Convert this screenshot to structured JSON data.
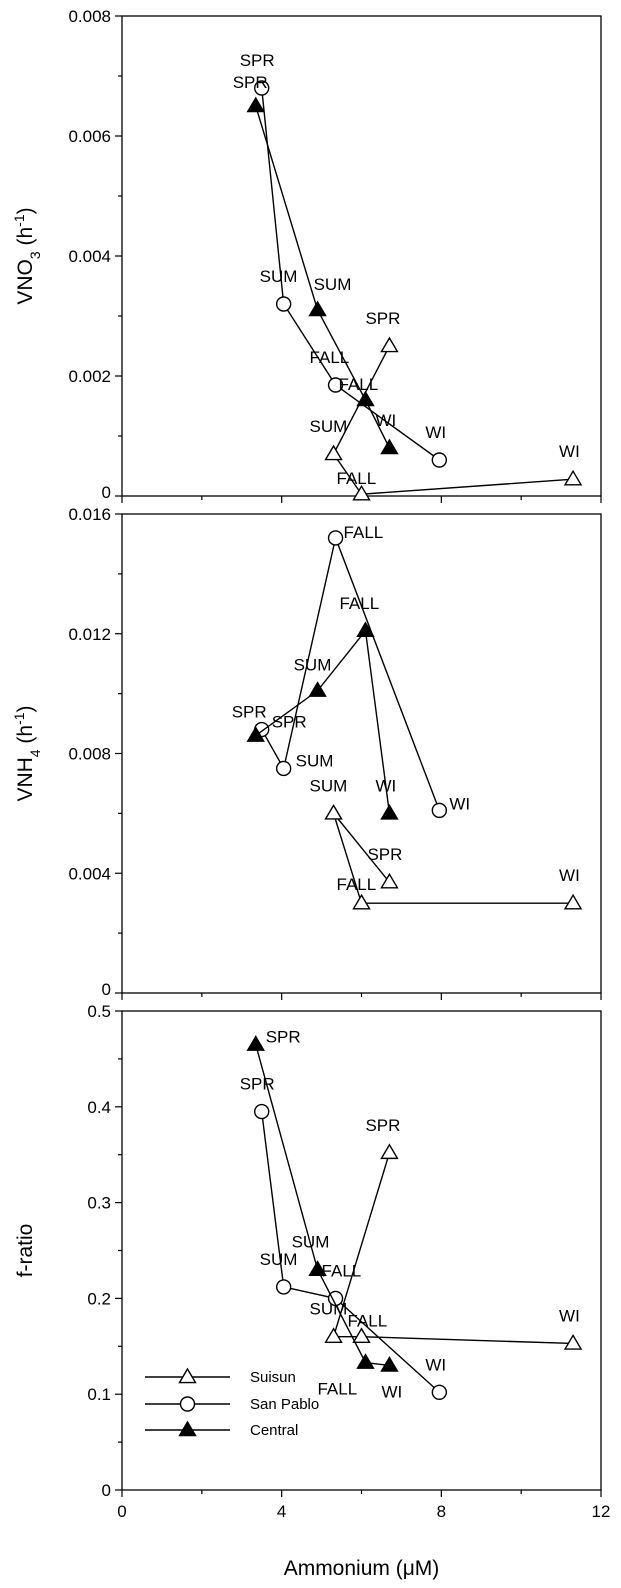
{
  "legend": {
    "placement": "lower-left of bottom panel",
    "items": [
      {
        "name": "Suisun",
        "marker": "open-triangle"
      },
      {
        "name": "San Pablo",
        "marker": "open-circle"
      },
      {
        "name": "Central",
        "marker": "filled-triangle"
      }
    ]
  },
  "chart_data": [
    {
      "type": "scatter",
      "connected": true,
      "xlabel": "",
      "ylabel": {
        "main": "VNO",
        "sub": "3",
        "unit": " (h",
        "sup": "-1",
        "close": ")"
      },
      "xlim": [
        0,
        12
      ],
      "ylim": [
        0,
        0.008
      ],
      "x_ticks": [
        0,
        4,
        8,
        12
      ],
      "x_tick_labels": [],
      "y_ticks": [
        0,
        0.002,
        0.004,
        0.006,
        0.008
      ],
      "y_tick_labels": [
        "0",
        "0.002",
        "0.004",
        "0.006",
        "0.008"
      ],
      "series": [
        {
          "name": "Suisun",
          "marker": "open-triangle",
          "points": [
            {
              "label": "SPR",
              "x": 6.7,
              "y": 0.0025
            },
            {
              "label": "SUM",
              "x": 5.3,
              "y": 0.0007
            },
            {
              "label": "FALL",
              "x": 6.0,
              "y": 3e-05
            },
            {
              "label": "WI",
              "x": 11.3,
              "y": 0.00028
            }
          ]
        },
        {
          "name": "San Pablo",
          "marker": "open-circle",
          "points": [
            {
              "label": "SPR",
              "x": 3.5,
              "y": 0.0068
            },
            {
              "label": "SUM",
              "x": 4.05,
              "y": 0.0032
            },
            {
              "label": "FALL",
              "x": 5.35,
              "y": 0.00185
            },
            {
              "label": "WI",
              "x": 7.95,
              "y": 0.0006
            }
          ]
        },
        {
          "name": "Central",
          "marker": "filled-triangle",
          "points": [
            {
              "label": "SPR",
              "x": 3.35,
              "y": 0.0065
            },
            {
              "label": "SUM",
              "x": 4.9,
              "y": 0.0031
            },
            {
              "label": "FALL",
              "x": 6.1,
              "y": 0.0016
            },
            {
              "label": "WI",
              "x": 6.7,
              "y": 0.0008
            }
          ]
        }
      ]
    },
    {
      "type": "scatter",
      "connected": true,
      "xlabel": "",
      "ylabel": {
        "main": "VNH",
        "sub": "4",
        "unit": " (h",
        "sup": "-1",
        "close": ")"
      },
      "xlim": [
        0,
        12
      ],
      "ylim": [
        0,
        0.016
      ],
      "x_ticks": [
        0,
        4,
        8,
        12
      ],
      "x_tick_labels": [],
      "y_ticks": [
        0,
        0.004,
        0.008,
        0.012,
        0.016
      ],
      "y_tick_labels": [
        "0",
        "0.004",
        "0.008",
        "0.012",
        "0.016"
      ],
      "series": [
        {
          "name": "Suisun",
          "marker": "open-triangle",
          "points": [
            {
              "label": "SPR",
              "x": 6.7,
              "y": 0.0037
            },
            {
              "label": "SUM",
              "x": 5.3,
              "y": 0.006
            },
            {
              "label": "FALL",
              "x": 6.0,
              "y": 0.003
            },
            {
              "label": "WI",
              "x": 11.3,
              "y": 0.003
            }
          ]
        },
        {
          "name": "San Pablo",
          "marker": "open-circle",
          "points": [
            {
              "label": "SPR",
              "x": 3.5,
              "y": 0.0088
            },
            {
              "label": "SUM",
              "x": 4.05,
              "y": 0.0075
            },
            {
              "label": "FALL",
              "x": 5.35,
              "y": 0.0152
            },
            {
              "label": "WI",
              "x": 7.95,
              "y": 0.0061
            }
          ]
        },
        {
          "name": "Central",
          "marker": "filled-triangle",
          "points": [
            {
              "label": "SPR",
              "x": 3.35,
              "y": 0.0086
            },
            {
              "label": "SUM",
              "x": 4.9,
              "y": 0.0101
            },
            {
              "label": "FALL",
              "x": 6.1,
              "y": 0.0121
            },
            {
              "label": "WI",
              "x": 6.7,
              "y": 0.006
            }
          ]
        }
      ]
    },
    {
      "type": "scatter",
      "connected": true,
      "xlabel": {
        "text": "Ammonium (",
        "mu": "μ",
        "rest": "M)"
      },
      "ylabel": {
        "main": "f-ratio"
      },
      "xlim": [
        0,
        12
      ],
      "ylim": [
        0,
        0.5
      ],
      "x_ticks": [
        0,
        4,
        8,
        12
      ],
      "x_tick_labels": [
        "0",
        "4",
        "8",
        "12"
      ],
      "y_ticks": [
        0,
        0.1,
        0.2,
        0.3,
        0.4,
        0.5
      ],
      "y_tick_labels": [
        "0",
        "0.1",
        "0.2",
        "0.3",
        "0.4",
        "0.5"
      ],
      "series": [
        {
          "name": "Suisun",
          "marker": "open-triangle",
          "points": [
            {
              "label": "SPR",
              "x": 6.7,
              "y": 0.352
            },
            {
              "label": "SUM",
              "x": 5.3,
              "y": 0.16
            },
            {
              "label": "FALL",
              "x": 6.0,
              "y": 0.16
            },
            {
              "label": "WI",
              "x": 11.3,
              "y": 0.153
            }
          ]
        },
        {
          "name": "San Pablo",
          "marker": "open-circle",
          "points": [
            {
              "label": "SPR",
              "x": 3.5,
              "y": 0.395
            },
            {
              "label": "SUM",
              "x": 4.05,
              "y": 0.212
            },
            {
              "label": "FALL",
              "x": 5.35,
              "y": 0.2
            },
            {
              "label": "WI",
              "x": 7.95,
              "y": 0.102
            }
          ]
        },
        {
          "name": "Central",
          "marker": "filled-triangle",
          "points": [
            {
              "label": "SPR",
              "x": 3.35,
              "y": 0.465
            },
            {
              "label": "SUM",
              "x": 4.9,
              "y": 0.23
            },
            {
              "label": "FALL",
              "x": 6.1,
              "y": 0.133
            },
            {
              "label": "WI",
              "x": 6.7,
              "y": 0.13
            }
          ]
        }
      ]
    }
  ]
}
